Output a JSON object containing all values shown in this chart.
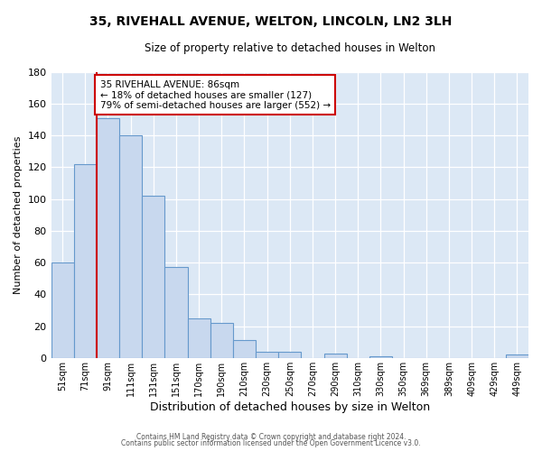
{
  "title": "35, RIVEHALL AVENUE, WELTON, LINCOLN, LN2 3LH",
  "subtitle": "Size of property relative to detached houses in Welton",
  "xlabel": "Distribution of detached houses by size in Welton",
  "ylabel": "Number of detached properties",
  "bin_labels": [
    "51sqm",
    "71sqm",
    "91sqm",
    "111sqm",
    "131sqm",
    "151sqm",
    "170sqm",
    "190sqm",
    "210sqm",
    "230sqm",
    "250sqm",
    "270sqm",
    "290sqm",
    "310sqm",
    "330sqm",
    "350sqm",
    "369sqm",
    "389sqm",
    "409sqm",
    "429sqm",
    "449sqm"
  ],
  "bar_heights": [
    60,
    122,
    151,
    140,
    102,
    57,
    25,
    22,
    11,
    4,
    4,
    0,
    3,
    0,
    1,
    0,
    0,
    0,
    0,
    0,
    2
  ],
  "bar_color": "#c8d8ee",
  "bar_edge_color": "#6699cc",
  "ylim": [
    0,
    180
  ],
  "yticks": [
    0,
    20,
    40,
    60,
    80,
    100,
    120,
    140,
    160,
    180
  ],
  "property_line_x": 2,
  "property_line_color": "#cc0000",
  "annotation_title": "35 RIVEHALL AVENUE: 86sqm",
  "annotation_line1": "← 18% of detached houses are smaller (127)",
  "annotation_line2": "79% of semi-detached houses are larger (552) →",
  "annotation_box_color": "#ffffff",
  "annotation_box_edge": "#cc0000",
  "footer_line1": "Contains HM Land Registry data © Crown copyright and database right 2024.",
  "footer_line2": "Contains public sector information licensed under the Open Government Licence v3.0.",
  "bg_color": "#ffffff",
  "plot_bg_color": "#dce8f5"
}
